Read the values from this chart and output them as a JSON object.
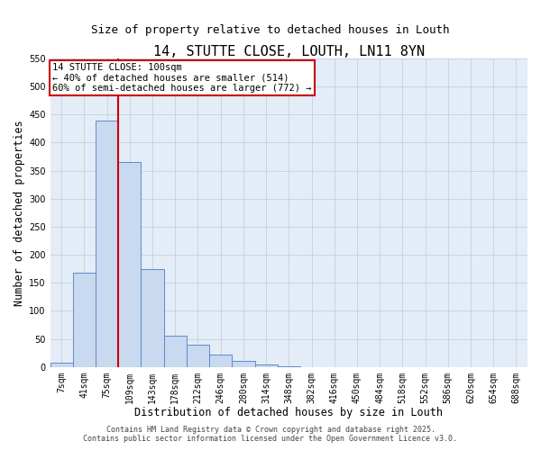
{
  "title": "14, STUTTE CLOSE, LOUTH, LN11 8YN",
  "subtitle": "Size of property relative to detached houses in Louth",
  "xlabel": "Distribution of detached houses by size in Louth",
  "ylabel": "Number of detached properties",
  "bin_labels": [
    "7sqm",
    "41sqm",
    "75sqm",
    "109sqm",
    "143sqm",
    "178sqm",
    "212sqm",
    "246sqm",
    "280sqm",
    "314sqm",
    "348sqm",
    "382sqm",
    "416sqm",
    "450sqm",
    "484sqm",
    "518sqm",
    "552sqm",
    "586sqm",
    "620sqm",
    "654sqm",
    "688sqm"
  ],
  "bar_values": [
    8,
    168,
    440,
    365,
    175,
    55,
    40,
    22,
    10,
    4,
    1,
    0,
    0,
    0,
    0,
    0,
    0,
    0,
    0,
    0,
    0
  ],
  "bar_color": "#c8d9f0",
  "bar_edge_color": "#5b8cc8",
  "grid_color": "#c4cfe0",
  "background_color": "#e4ecf7",
  "vline_x_index": 3,
  "vline_color": "#cc0000",
  "annotation_title": "14 STUTTE CLOSE: 100sqm",
  "annotation_line1": "← 40% of detached houses are smaller (514)",
  "annotation_line2": "60% of semi-detached houses are larger (772) →",
  "annotation_box_color": "#ffffff",
  "annotation_box_edge": "#cc0000",
  "ylim": [
    0,
    550
  ],
  "yticks": [
    0,
    50,
    100,
    150,
    200,
    250,
    300,
    350,
    400,
    450,
    500,
    550
  ],
  "footer1": "Contains HM Land Registry data © Crown copyright and database right 2025.",
  "footer2": "Contains public sector information licensed under the Open Government Licence v3.0.",
  "title_fontsize": 11,
  "subtitle_fontsize": 9,
  "axis_label_fontsize": 8.5,
  "tick_fontsize": 7,
  "annotation_fontsize": 7.5,
  "footer_fontsize": 6
}
